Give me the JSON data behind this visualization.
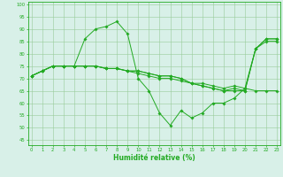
{
  "xlabel": "Humidité relative (%)",
  "xlim": [
    -0.3,
    23.3
  ],
  "ylim": [
    43,
    101
  ],
  "yticks": [
    45,
    50,
    55,
    60,
    65,
    70,
    75,
    80,
    85,
    90,
    95,
    100
  ],
  "xticks": [
    0,
    1,
    2,
    3,
    4,
    5,
    6,
    7,
    8,
    9,
    10,
    11,
    12,
    13,
    14,
    15,
    16,
    17,
    18,
    19,
    20,
    21,
    22,
    23
  ],
  "line_color": "#22aa22",
  "bg_color": "#d8f0e8",
  "grid_color": "#99cc99",
  "series": [
    [
      71,
      73,
      75,
      75,
      75,
      86,
      90,
      91,
      93,
      88,
      70,
      65,
      56,
      51,
      57,
      54,
      56,
      60,
      60,
      62,
      66,
      65,
      65,
      65
    ],
    [
      71,
      73,
      75,
      75,
      75,
      75,
      75,
      74,
      74,
      73,
      72,
      71,
      70,
      70,
      69,
      68,
      67,
      66,
      65,
      65,
      65,
      82,
      85,
      85
    ],
    [
      71,
      73,
      75,
      75,
      75,
      75,
      75,
      74,
      74,
      73,
      73,
      72,
      71,
      71,
      70,
      68,
      67,
      66,
      65,
      66,
      65,
      82,
      86,
      86
    ],
    [
      71,
      73,
      75,
      75,
      75,
      75,
      75,
      74,
      74,
      73,
      73,
      72,
      71,
      71,
      70,
      68,
      68,
      67,
      66,
      67,
      66,
      82,
      86,
      86
    ]
  ]
}
